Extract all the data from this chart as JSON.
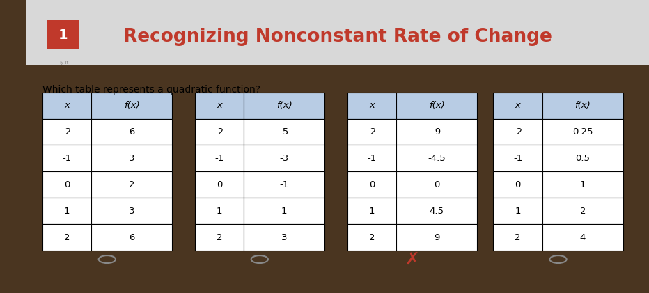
{
  "title": "Recognizing Nonconstant Rate of Change",
  "question": "Which table represents a quadratic function?",
  "outer_bg": "#4a3520",
  "card_bg": "#e8e8e8",
  "header_bar_bg": "#e0e0e0",
  "title_color": "#c0392b",
  "header_cell_bg": "#b8cce4",
  "cell_bg": "#ffffff",
  "tables": [
    {
      "x": [
        -2,
        -1,
        0,
        1,
        2
      ],
      "fx": [
        6,
        3,
        2,
        3,
        6
      ],
      "marker": "circle"
    },
    {
      "x": [
        -2,
        -1,
        0,
        1,
        2
      ],
      "fx": [
        -5,
        -3,
        -1,
        1,
        3
      ],
      "marker": "circle"
    },
    {
      "x": [
        -2,
        -1,
        0,
        1,
        2
      ],
      "fx": [
        -9,
        -4.5,
        0,
        4.5,
        9
      ],
      "marker": "x"
    },
    {
      "x": [
        -2,
        -1,
        0,
        1,
        2
      ],
      "fx": [
        0.25,
        0.5,
        1,
        2,
        4
      ],
      "marker": "circle"
    }
  ]
}
